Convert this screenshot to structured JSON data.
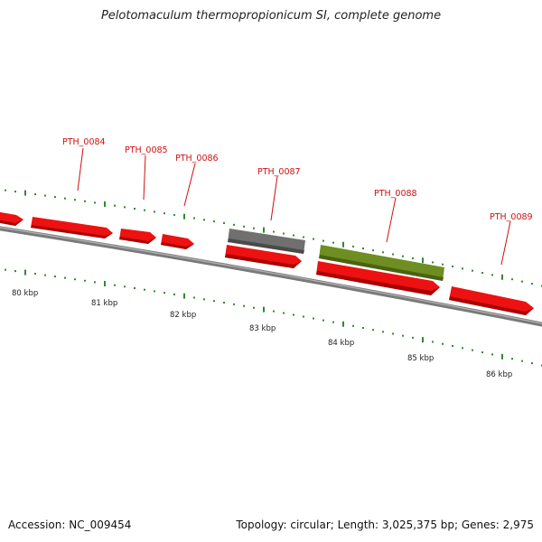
{
  "title": "Pelotomaculum thermopropionicum SI, complete genome",
  "footer": {
    "accession": "Accession: NC_009454",
    "summary": "Topology: circular; Length: 3,025,375 bp; Genes: 2,975"
  },
  "colors": {
    "cds": "#ee1111",
    "cds_dark": "#a80000",
    "grey_feature": "#707070",
    "green_feature": "#6e8e22",
    "backbone": "#7a7a7a",
    "tick": "#2f8a2f",
    "label": "#d01010"
  },
  "gene_labels": [
    "PTH_0084",
    "PTH_0085",
    "PTH_0086",
    "PTH_0087",
    "PTH_0088",
    "PTH_0089"
  ],
  "scale_labels": [
    "80 kbp",
    "81 kbp",
    "82 kbp",
    "83 kbp",
    "84 kbp",
    "85 kbp",
    "86 kbp"
  ]
}
